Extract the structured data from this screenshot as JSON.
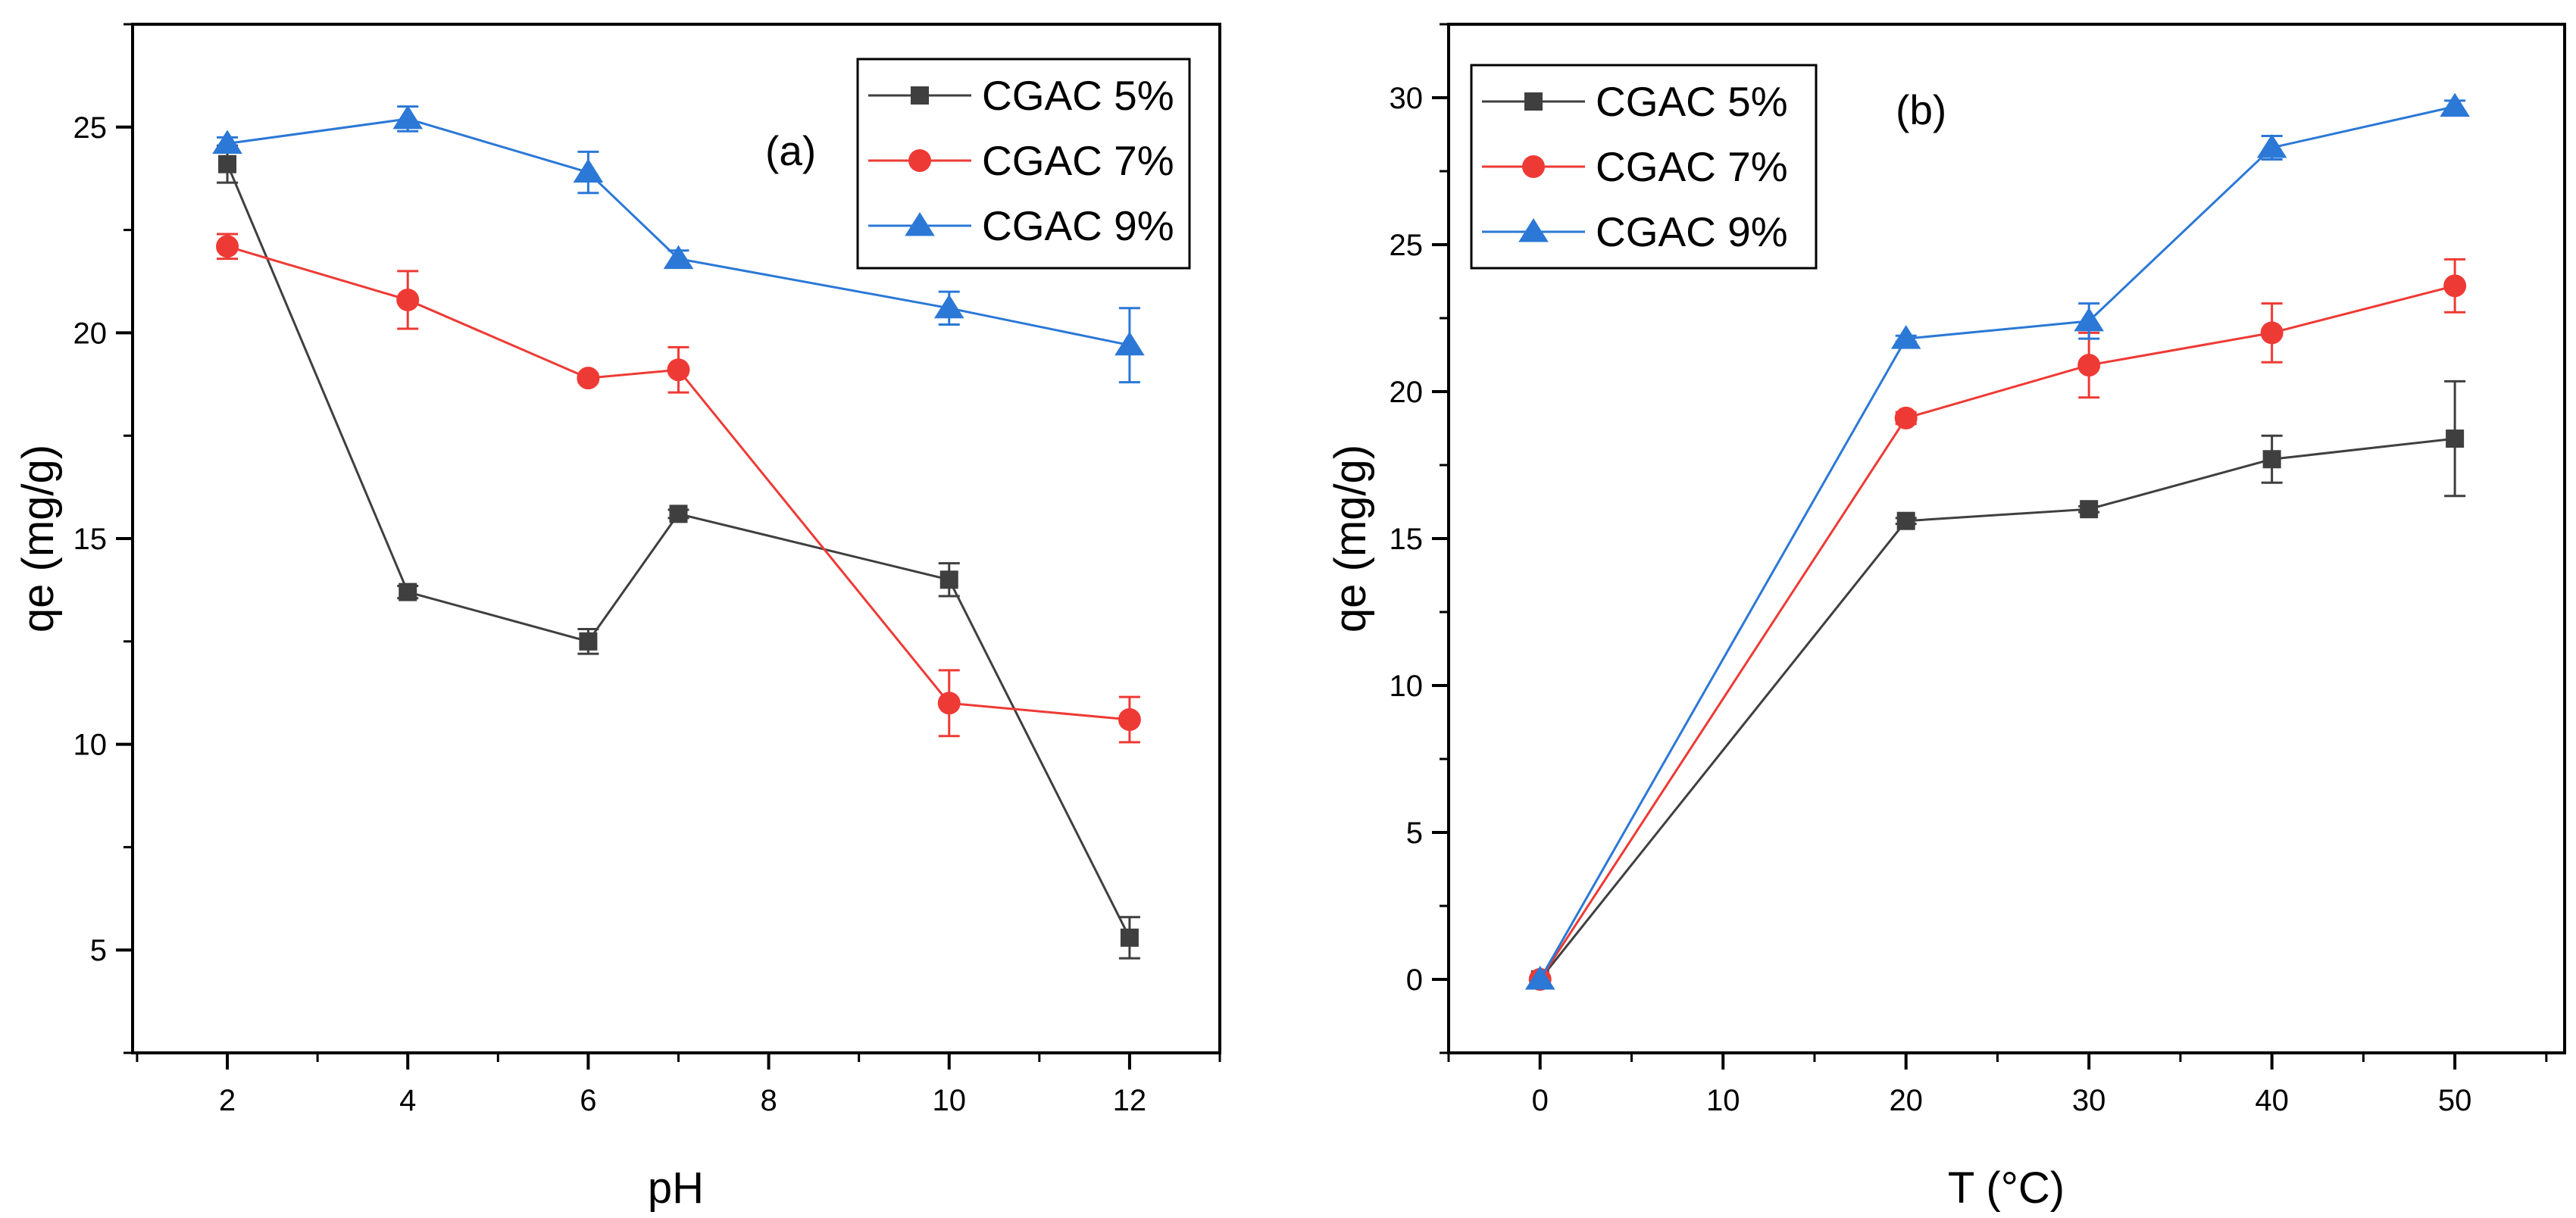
{
  "chart_data": [
    {
      "type": "line",
      "panel_label": "(a)",
      "xlabel": "pH",
      "ylabel": "qe (mg/g)",
      "xlim": [
        0.95,
        13.0
      ],
      "ylim": [
        2.5,
        27.5
      ],
      "xticks": [
        2,
        4,
        6,
        8,
        10,
        12
      ],
      "yticks": [
        5,
        10,
        15,
        20,
        25
      ],
      "xtick_labels": [
        "2",
        "4",
        "6",
        "8",
        "10",
        "12"
      ],
      "ytick_labels": [
        "5",
        "10",
        "15",
        "20",
        "25"
      ],
      "legend_position": "top-right",
      "x": [
        2,
        4,
        6,
        7,
        10,
        12
      ],
      "series": [
        {
          "name": "CGAC 5%",
          "color": "#3f3f3f",
          "marker": "square",
          "values": [
            24.1,
            13.7,
            12.5,
            15.6,
            14.0,
            5.3
          ],
          "errors": [
            0.45,
            0.15,
            0.3,
            0.1,
            0.4,
            0.5
          ]
        },
        {
          "name": "CGAC 7%",
          "color": "#ee3a35",
          "marker": "circle",
          "values": [
            22.1,
            20.8,
            18.9,
            19.1,
            11.0,
            10.6
          ],
          "errors": [
            0.3,
            0.7,
            0.1,
            0.55,
            0.8,
            0.55
          ]
        },
        {
          "name": "CGAC 9%",
          "color": "#2b78d6",
          "marker": "triangle",
          "values": [
            24.6,
            25.2,
            23.9,
            21.8,
            20.6,
            19.7
          ],
          "errors": [
            0.15,
            0.3,
            0.5,
            0.2,
            0.4,
            0.9
          ]
        }
      ]
    },
    {
      "type": "line",
      "panel_label": "(b)",
      "xlabel": "T (°C)",
      "ylabel": "qe (mg/g)",
      "xlim": [
        -5,
        56
      ],
      "ylim": [
        -2.5,
        32.5
      ],
      "xticks": [
        0,
        10,
        20,
        30,
        40,
        50
      ],
      "yticks": [
        0,
        5,
        10,
        15,
        20,
        25,
        30
      ],
      "xtick_labels": [
        "0",
        "10",
        "20",
        "30",
        "40",
        "50"
      ],
      "ytick_labels": [
        "0",
        "5",
        "10",
        "15",
        "20",
        "25",
        "30"
      ],
      "legend_position": "top-left",
      "x": [
        0,
        20,
        30,
        40,
        50
      ],
      "series": [
        {
          "name": "CGAC 5%",
          "color": "#3f3f3f",
          "marker": "square",
          "values": [
            0,
            15.6,
            16.0,
            17.7,
            18.4
          ],
          "errors": [
            0,
            0.1,
            0.1,
            0.8,
            1.95
          ]
        },
        {
          "name": "CGAC 7%",
          "color": "#ee3a35",
          "marker": "circle",
          "values": [
            0,
            19.1,
            20.9,
            22.0,
            23.6
          ],
          "errors": [
            0,
            0.2,
            1.1,
            1.0,
            0.9
          ]
        },
        {
          "name": "CGAC 9%",
          "color": "#2b78d6",
          "marker": "triangle",
          "values": [
            0,
            21.8,
            22.4,
            28.3,
            29.7
          ],
          "errors": [
            0,
            0.1,
            0.6,
            0.4,
            0.2
          ]
        }
      ]
    }
  ]
}
